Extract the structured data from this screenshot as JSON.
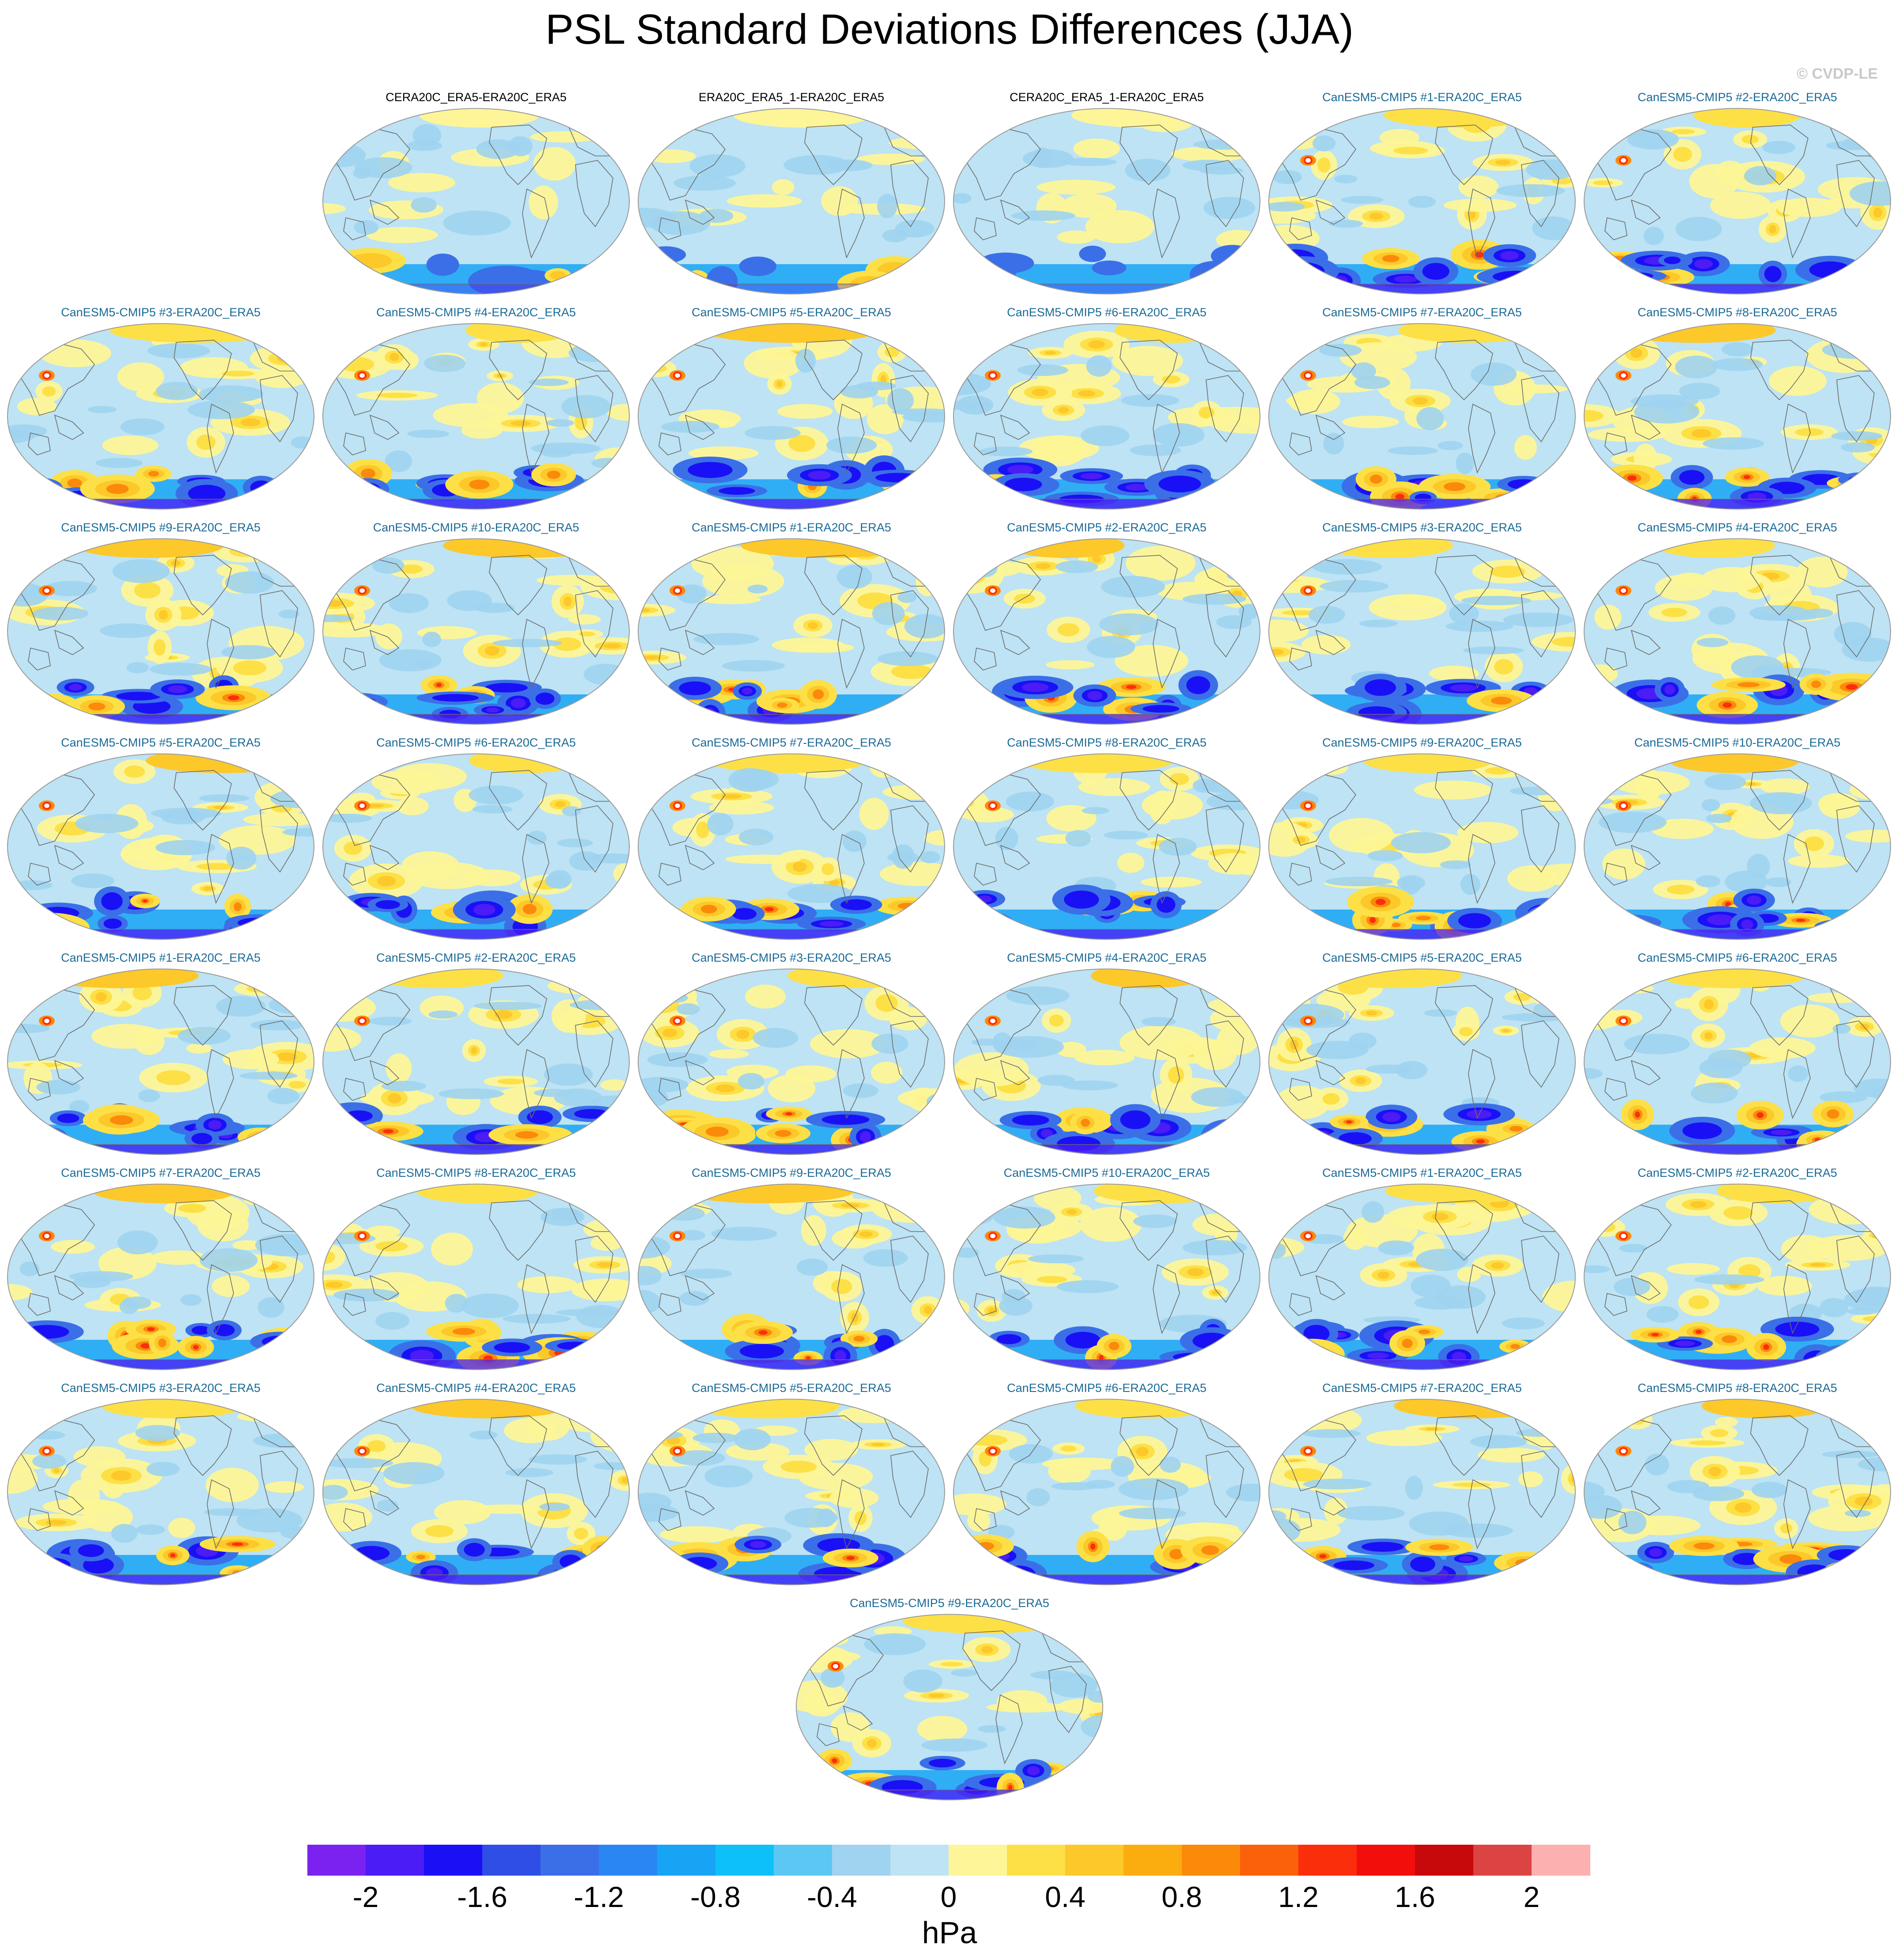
{
  "figure": {
    "title": "PSL Standard Deviations Differences (JJA)",
    "copyright": "© CVDP-LE",
    "units": "hPa"
  },
  "colors": {
    "obs_title": "#000000",
    "model_title": "#1a6a96",
    "land_outline": "#6b6b6b",
    "map_edge": "#9a9a9a"
  },
  "colorbar": {
    "boxes": [
      "#7b22f0",
      "#4b1cf5",
      "#1a10f6",
      "#2f4ee6",
      "#3b6fe8",
      "#2a86f2",
      "#17a4f5",
      "#0dc1f8",
      "#5cc7f3",
      "#9fd3ef",
      "#bde3f4",
      "#fdf597",
      "#fde046",
      "#fcc82a",
      "#fbac0f",
      "#fb8a0b",
      "#fb600b",
      "#fb2e0b",
      "#f20e0b",
      "#c8090b",
      "#dc4343",
      "#fcb0b0"
    ],
    "labels": [
      "-2",
      "-1.6",
      "-1.2",
      "-0.8",
      "-0.4",
      "0",
      "0.4",
      "0.8",
      "1.2",
      "1.6",
      "2"
    ]
  },
  "panels": [
    {
      "title": "CERA20C_ERA5-ERA20C_ERA5",
      "kind": "obs"
    },
    {
      "title": "ERA20C_ERA5_1-ERA20C_ERA5",
      "kind": "obs"
    },
    {
      "title": "CERA20C_ERA5_1-ERA20C_ERA5",
      "kind": "obs"
    },
    {
      "title": "CanESM5-CMIP5 #1-ERA20C_ERA5",
      "kind": "model"
    },
    {
      "title": "CanESM5-CMIP5 #2-ERA20C_ERA5",
      "kind": "model"
    },
    {
      "title": "CanESM5-CMIP5 #3-ERA20C_ERA5",
      "kind": "model"
    },
    {
      "title": "CanESM5-CMIP5 #4-ERA20C_ERA5",
      "kind": "model"
    },
    {
      "title": "CanESM5-CMIP5 #5-ERA20C_ERA5",
      "kind": "model"
    },
    {
      "title": "CanESM5-CMIP5 #6-ERA20C_ERA5",
      "kind": "model"
    },
    {
      "title": "CanESM5-CMIP5 #7-ERA20C_ERA5",
      "kind": "model"
    },
    {
      "title": "CanESM5-CMIP5 #8-ERA20C_ERA5",
      "kind": "model"
    },
    {
      "title": "CanESM5-CMIP5 #9-ERA20C_ERA5",
      "kind": "model"
    },
    {
      "title": "CanESM5-CMIP5 #10-ERA20C_ERA5",
      "kind": "model"
    },
    {
      "title": "CanESM5-CMIP5 #1-ERA20C_ERA5",
      "kind": "model"
    },
    {
      "title": "CanESM5-CMIP5 #2-ERA20C_ERA5",
      "kind": "model"
    },
    {
      "title": "CanESM5-CMIP5 #3-ERA20C_ERA5",
      "kind": "model"
    },
    {
      "title": "CanESM5-CMIP5 #4-ERA20C_ERA5",
      "kind": "model"
    },
    {
      "title": "CanESM5-CMIP5 #5-ERA20C_ERA5",
      "kind": "model"
    },
    {
      "title": "CanESM5-CMIP5 #6-ERA20C_ERA5",
      "kind": "model"
    },
    {
      "title": "CanESM5-CMIP5 #7-ERA20C_ERA5",
      "kind": "model"
    },
    {
      "title": "CanESM5-CMIP5 #8-ERA20C_ERA5",
      "kind": "model"
    },
    {
      "title": "CanESM5-CMIP5 #9-ERA20C_ERA5",
      "kind": "model"
    },
    {
      "title": "CanESM5-CMIP5 #10-ERA20C_ERA5",
      "kind": "model"
    },
    {
      "title": "CanESM5-CMIP5 #1-ERA20C_ERA5",
      "kind": "model"
    },
    {
      "title": "CanESM5-CMIP5 #2-ERA20C_ERA5",
      "kind": "model"
    },
    {
      "title": "CanESM5-CMIP5 #3-ERA20C_ERA5",
      "kind": "model"
    },
    {
      "title": "CanESM5-CMIP5 #4-ERA20C_ERA5",
      "kind": "model"
    },
    {
      "title": "CanESM5-CMIP5 #5-ERA20C_ERA5",
      "kind": "model"
    },
    {
      "title": "CanESM5-CMIP5 #6-ERA20C_ERA5",
      "kind": "model"
    },
    {
      "title": "CanESM5-CMIP5 #7-ERA20C_ERA5",
      "kind": "model"
    },
    {
      "title": "CanESM5-CMIP5 #8-ERA20C_ERA5",
      "kind": "model"
    },
    {
      "title": "CanESM5-CMIP5 #9-ERA20C_ERA5",
      "kind": "model"
    },
    {
      "title": "CanESM5-CMIP5 #10-ERA20C_ERA5",
      "kind": "model"
    },
    {
      "title": "CanESM5-CMIP5 #1-ERA20C_ERA5",
      "kind": "model"
    },
    {
      "title": "CanESM5-CMIP5 #2-ERA20C_ERA5",
      "kind": "model"
    },
    {
      "title": "CanESM5-CMIP5 #3-ERA20C_ERA5",
      "kind": "model"
    },
    {
      "title": "CanESM5-CMIP5 #4-ERA20C_ERA5",
      "kind": "model"
    },
    {
      "title": "CanESM5-CMIP5 #5-ERA20C_ERA5",
      "kind": "model"
    },
    {
      "title": "CanESM5-CMIP5 #6-ERA20C_ERA5",
      "kind": "model"
    },
    {
      "title": "CanESM5-CMIP5 #7-ERA20C_ERA5",
      "kind": "model"
    },
    {
      "title": "CanESM5-CMIP5 #8-ERA20C_ERA5",
      "kind": "model"
    },
    {
      "title": "CanESM5-CMIP5 #9-ERA20C_ERA5",
      "kind": "model"
    }
  ]
}
